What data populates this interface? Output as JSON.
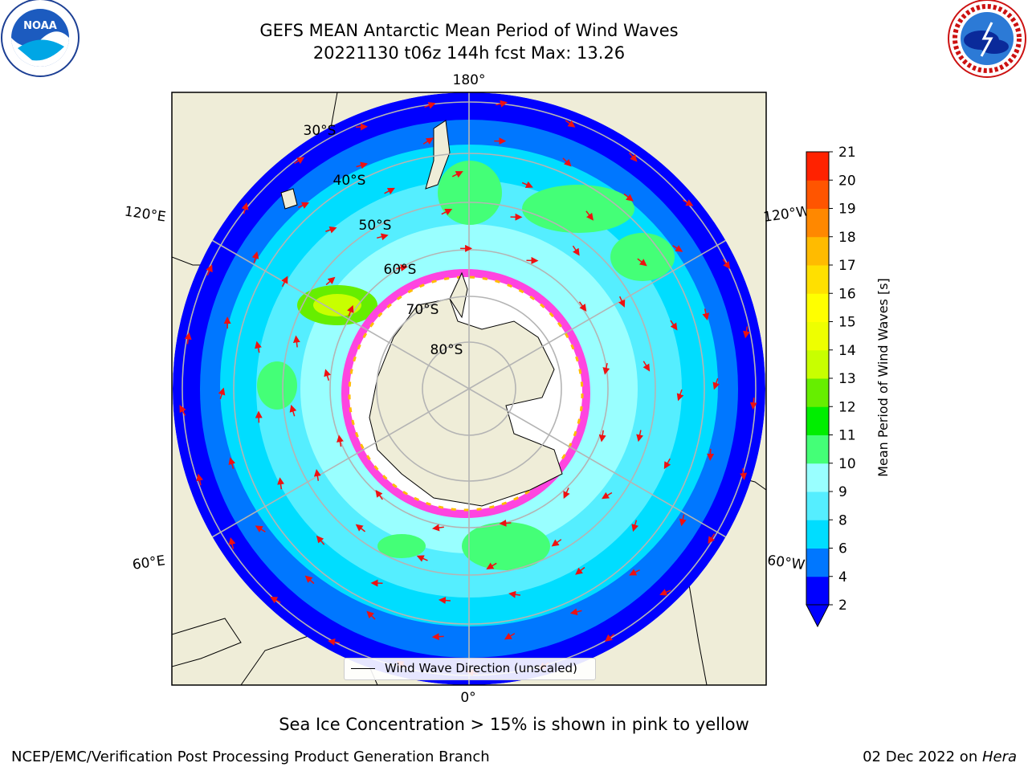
{
  "header": {
    "title_line1": "GEFS MEAN Antarctic Mean Period of Wind Waves",
    "title_line2": "20221130 t06z 144h fcst   Max: 13.26"
  },
  "logos": {
    "left": {
      "icon": "noaa-logo",
      "text": "NOAA"
    },
    "right": {
      "icon": "nws-logo"
    }
  },
  "map": {
    "longitude_labels": [
      "180°",
      "120°E",
      "120°W",
      "60°E",
      "60°W",
      "0°"
    ],
    "latitude_labels": [
      "30°S",
      "40°S",
      "50°S",
      "60°S",
      "70°S",
      "80°S"
    ],
    "colors": {
      "land": "#efedd8",
      "ice_free_white": "#ffffff",
      "sea_ice_edge": "#ff44e0",
      "arrows": "#ee1111",
      "graticule": "#b4b4b4"
    },
    "legend": {
      "label": "Wind Wave Direction (unscaled)"
    }
  },
  "colorbar": {
    "label": "Mean Period of Wind Waves [s]",
    "ticks": [
      "2",
      "4",
      "6",
      "8",
      "9",
      "10",
      "11",
      "12",
      "13",
      "14",
      "15",
      "16",
      "17",
      "18",
      "19",
      "20",
      "21"
    ],
    "colors": [
      "#0000ff",
      "#0077ff",
      "#00ddff",
      "#55eeff",
      "#99ffff",
      "#44ff77",
      "#00ee00",
      "#66ee00",
      "#c8ff00",
      "#eeff00",
      "#ffff00",
      "#ffe000",
      "#ffbb00",
      "#ff8800",
      "#ff5500",
      "#ff2200",
      "#ff0000"
    ]
  },
  "caption": "Sea Ice Concentration > 15% is shown in pink to yellow",
  "footer": {
    "left": "NCEP/EMC/Verification Post Processing Product Generation Branch",
    "date": "02 Dec 2022 on ",
    "machine": "Hera"
  }
}
